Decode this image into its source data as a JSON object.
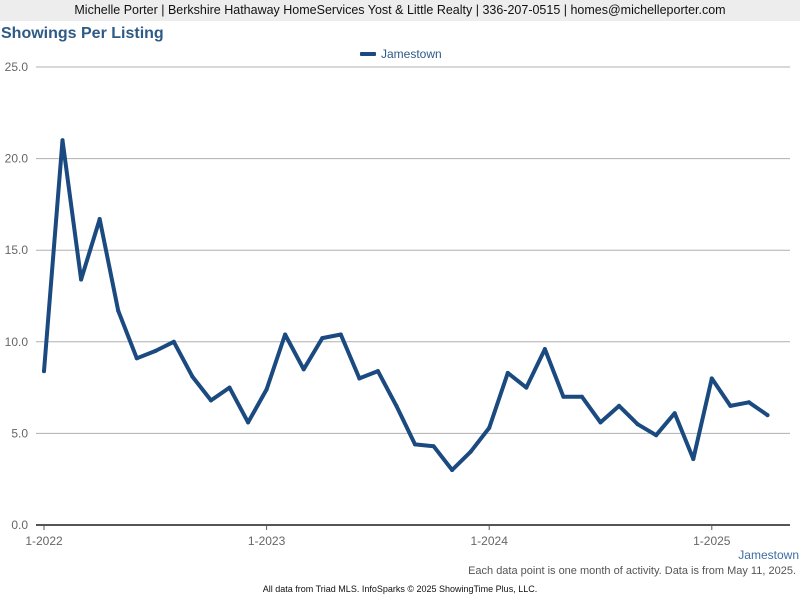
{
  "header": {
    "text": "Michelle Porter | Berkshire Hathaway HomeServices Yost & Little Realty | 336-207-0515 | homes@michelleporter.com"
  },
  "chart_data": {
    "type": "line",
    "title": "Showings Per Listing",
    "xlabel": "",
    "ylabel": "",
    "ylim": [
      0,
      25
    ],
    "y_ticks": [
      "0.0",
      "5.0",
      "10.0",
      "15.0",
      "20.0",
      "25.0"
    ],
    "x_tick_labels": [
      "1-2022",
      "1-2023",
      "1-2024",
      "1-2025"
    ],
    "x_start": "2022-01",
    "grid": "horizontal",
    "legend_position": "top-center",
    "colors": {
      "line": "#1a4a80",
      "grid": "#b0b0b0",
      "axis": "#555555",
      "ticks": "#666666"
    },
    "series": [
      {
        "name": "Jamestown",
        "months": [
          "2022-01",
          "2022-02",
          "2022-03",
          "2022-04",
          "2022-05",
          "2022-06",
          "2022-07",
          "2022-08",
          "2022-09",
          "2022-10",
          "2022-11",
          "2022-12",
          "2023-01",
          "2023-02",
          "2023-03",
          "2023-04",
          "2023-05",
          "2023-06",
          "2023-07",
          "2023-08",
          "2023-09",
          "2023-10",
          "2023-11",
          "2023-12",
          "2024-01",
          "2024-02",
          "2024-03",
          "2024-04",
          "2024-05",
          "2024-06",
          "2024-07",
          "2024-08",
          "2024-09",
          "2024-10",
          "2024-11",
          "2024-12",
          "2025-01",
          "2025-02",
          "2025-03",
          "2025-04"
        ],
        "values": [
          8.4,
          21.0,
          13.4,
          16.7,
          11.7,
          9.1,
          9.5,
          10.0,
          8.1,
          6.8,
          7.5,
          5.6,
          7.4,
          10.4,
          8.5,
          10.2,
          10.4,
          8.0,
          8.4,
          6.5,
          4.4,
          4.3,
          3.0,
          4.0,
          5.3,
          8.3,
          7.5,
          9.6,
          7.0,
          7.0,
          5.6,
          6.5,
          5.5,
          4.9,
          6.1,
          3.6,
          8.0,
          6.5,
          6.7,
          6.0
        ]
      }
    ]
  },
  "corner_label": "Jamestown",
  "footnote": "Each data point is one month of activity. Data is from May 11, 2025.",
  "credit": "All data from Triad MLS. InfoSparks © 2025 ShowingTime Plus, LLC."
}
